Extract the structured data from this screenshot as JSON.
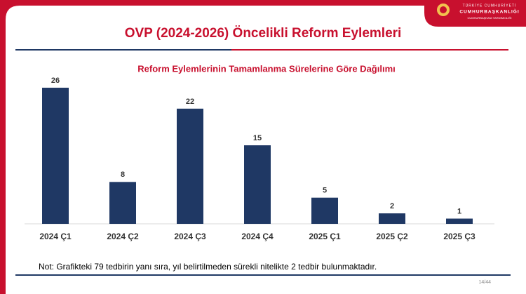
{
  "header": {
    "title": "OVP (2024-2026) Öncelikli Reform Eylemleri",
    "logo_lines": [
      "TÜRKİYE CUMHURİYETİ",
      "CUMHURBAŞKANLIĞI",
      "CUMHURBAŞKANI YARDIMCILIĞI"
    ]
  },
  "chart_data": {
    "type": "bar",
    "title": "Reform Eylemlerinin Tamamlanma Sürelerine Göre Dağılımı",
    "categories": [
      "2024 Ç1",
      "2024 Ç2",
      "2024 Ç3",
      "2024 Ç4",
      "2025 Ç1",
      "2025 Ç2",
      "2025 Ç3"
    ],
    "values": [
      26,
      8,
      22,
      15,
      5,
      2,
      1
    ],
    "color": "#1f3864"
  },
  "footer": {
    "note": "Not: Grafikteki 79 tedbirin yanı sıra, yıl belirtilmeden sürekli nitelikte 2 tedbir bulunmaktadır.",
    "page": "14/44"
  }
}
